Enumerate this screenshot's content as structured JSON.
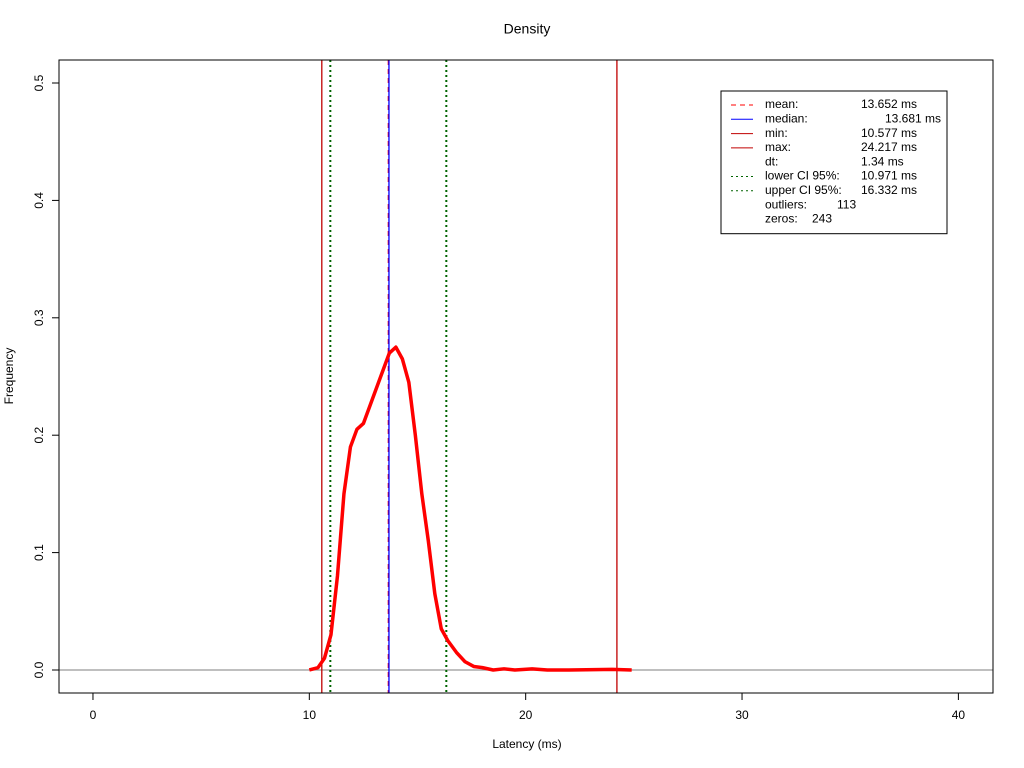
{
  "chart_data": {
    "type": "line",
    "title": "Density",
    "xlabel": "Latency (ms)",
    "ylabel": "Frequency",
    "x": [
      10.0,
      10.4,
      10.7,
      11.0,
      11.3,
      11.6,
      11.9,
      12.2,
      12.5,
      12.8,
      13.1,
      13.4,
      13.7,
      14.0,
      14.3,
      14.6,
      14.9,
      15.2,
      15.5,
      15.8,
      16.1,
      16.4,
      16.8,
      17.2,
      17.6,
      18.0,
      18.5,
      19.0,
      19.5,
      20.3,
      21.0,
      22.0,
      24.0,
      24.9
    ],
    "values": [
      0.0,
      0.002,
      0.01,
      0.03,
      0.08,
      0.15,
      0.19,
      0.205,
      0.21,
      0.225,
      0.24,
      0.255,
      0.27,
      0.275,
      0.265,
      0.245,
      0.2,
      0.15,
      0.11,
      0.065,
      0.035,
      0.025,
      0.015,
      0.007,
      0.003,
      0.002,
      0.0,
      0.001,
      0.0,
      0.001,
      0.0,
      0.0,
      0.0005,
      0.0
    ],
    "color": "#ff0000",
    "xlim": [
      -1.57,
      41.6
    ],
    "ylim": [
      -0.0196,
      0.5196
    ],
    "xticks": [
      0,
      10,
      20,
      30,
      40
    ],
    "yticks": [
      {
        "value": 0,
        "label": "0.0"
      },
      0.1,
      0.2,
      0.3,
      0.4,
      0.5
    ],
    "legend": {
      "position": "topright",
      "entries": [
        {
          "name": "mean:",
          "value": 13.652,
          "value_label": "13.652 ms",
          "color": "#ff0000",
          "dash": "dashed"
        },
        {
          "name": "median:",
          "value": 13.681,
          "value_label": "13.681 ms",
          "color": "#0000ff",
          "dash": "solid"
        },
        {
          "name": "min:",
          "value": 10.577,
          "value_label": "10.577 ms",
          "color": "#c00000",
          "dash": "solid"
        },
        {
          "name": "max:",
          "value": 24.217,
          "value_label": "24.217 ms",
          "color": "#c00000",
          "dash": "solid"
        },
        {
          "name": "dt:",
          "value": 1.34,
          "value_label": "1.34 ms"
        },
        {
          "name": "lower CI 95%:",
          "value": 10.971,
          "value_label": "10.971 ms",
          "color": "#006400",
          "dash": "dotted"
        },
        {
          "name": "upper CI 95%:",
          "value": 16.332,
          "value_label": "16.332 ms",
          "color": "#006400",
          "dash": "dotted"
        },
        {
          "name": "outliers:",
          "value": 113
        },
        {
          "name": "zeros:",
          "value": 243
        }
      ]
    }
  }
}
